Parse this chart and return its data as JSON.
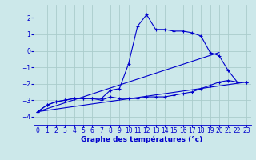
{
  "xlabel": "Graphe des températures (°c)",
  "xlim": [
    -0.5,
    23.5
  ],
  "ylim": [
    -4.5,
    2.8
  ],
  "yticks": [
    -4,
    -3,
    -2,
    -1,
    0,
    1,
    2
  ],
  "xticks": [
    0,
    1,
    2,
    3,
    4,
    5,
    6,
    7,
    8,
    9,
    10,
    11,
    12,
    13,
    14,
    15,
    16,
    17,
    18,
    19,
    20,
    21,
    22,
    23
  ],
  "background_color": "#cce8ea",
  "line_color": "#0000cc",
  "grid_color": "#aacccc",
  "line1_x": [
    0,
    1,
    2,
    3,
    4,
    5,
    6,
    7,
    8,
    9,
    10,
    11,
    12,
    13,
    14,
    15,
    16,
    17,
    18,
    19,
    20,
    21,
    22,
    23
  ],
  "line1_y": [
    -3.7,
    -3.3,
    -3.1,
    -3.0,
    -2.9,
    -2.9,
    -2.9,
    -2.9,
    -2.4,
    -2.3,
    -0.8,
    1.5,
    2.2,
    1.3,
    1.3,
    1.2,
    1.2,
    1.1,
    0.9,
    -0.1,
    -0.3,
    -1.2,
    -1.9,
    -1.9
  ],
  "line2_x": [
    0,
    1,
    2,
    3,
    4,
    5,
    6,
    7,
    8,
    9,
    10,
    11,
    12,
    13,
    14,
    15,
    16,
    17,
    18,
    19,
    20,
    21,
    22,
    23
  ],
  "line2_y": [
    -3.7,
    -3.3,
    -3.1,
    -3.0,
    -2.9,
    -2.9,
    -2.9,
    -3.0,
    -2.8,
    -2.9,
    -2.9,
    -2.9,
    -2.8,
    -2.8,
    -2.8,
    -2.7,
    -2.6,
    -2.5,
    -2.3,
    -2.1,
    -1.9,
    -1.8,
    -1.9,
    -1.9
  ],
  "line3_x": [
    0,
    20
  ],
  "line3_y": [
    -3.7,
    -0.1
  ],
  "line4_x": [
    0,
    23
  ],
  "line4_y": [
    -3.7,
    -1.9
  ]
}
